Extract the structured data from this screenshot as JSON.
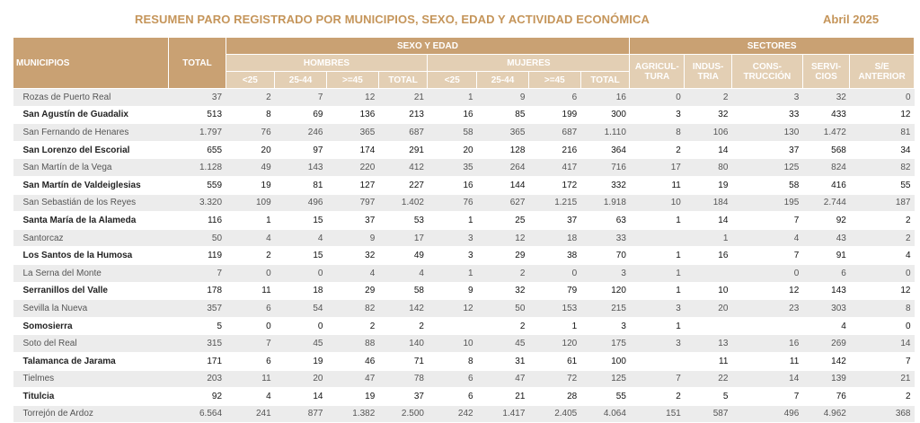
{
  "header": {
    "title": "RESUMEN PARO REGISTRADO POR MUNICIPIOS, SEXO, EDAD Y ACTIVIDAD ECONÓMICA",
    "date": "Abril 2025"
  },
  "table": {
    "col_municipios": "MUNICIPIOS",
    "col_total": "TOTAL",
    "group_sexo_edad": "SEXO Y EDAD",
    "group_sectores": "SECTORES",
    "group_hombres": "HOMBRES",
    "group_mujeres": "MUJERES",
    "age_cols": [
      "<25",
      "25-44",
      ">=45",
      "TOTAL"
    ],
    "sector_cols": [
      "AGRICUL-TURA",
      "INDUS-TRIA",
      "CONS-TRUCCIÓN",
      "SERVI-CIOS",
      "S/E ANTERIOR"
    ],
    "sector_cols_display": [
      [
        "AGRICUL-",
        "TURA"
      ],
      [
        "INDUS-",
        "TRIA"
      ],
      [
        "CONS-",
        "TRUCCIÓN"
      ],
      [
        "SERVI-",
        "CIOS"
      ],
      [
        "S/E ANTERIOR",
        ""
      ]
    ],
    "rows": [
      [
        "Rozas de Puerto Real",
        "37",
        "2",
        "7",
        "12",
        "21",
        "1",
        "9",
        "6",
        "16",
        "0",
        "2",
        "3",
        "32",
        "0"
      ],
      [
        "San Agustín de Guadalix",
        "513",
        "8",
        "69",
        "136",
        "213",
        "16",
        "85",
        "199",
        "300",
        "3",
        "32",
        "33",
        "433",
        "12"
      ],
      [
        "San Fernando de Henares",
        "1.797",
        "76",
        "246",
        "365",
        "687",
        "58",
        "365",
        "687",
        "1.110",
        "8",
        "106",
        "130",
        "1.472",
        "81"
      ],
      [
        "San Lorenzo del Escorial",
        "655",
        "20",
        "97",
        "174",
        "291",
        "20",
        "128",
        "216",
        "364",
        "2",
        "14",
        "37",
        "568",
        "34"
      ],
      [
        "San Martín de la Vega",
        "1.128",
        "49",
        "143",
        "220",
        "412",
        "35",
        "264",
        "417",
        "716",
        "17",
        "80",
        "125",
        "824",
        "82"
      ],
      [
        "San Martín de Valdeiglesias",
        "559",
        "19",
        "81",
        "127",
        "227",
        "16",
        "144",
        "172",
        "332",
        "11",
        "19",
        "58",
        "416",
        "55"
      ],
      [
        "San Sebastián de los Reyes",
        "3.320",
        "109",
        "496",
        "797",
        "1.402",
        "76",
        "627",
        "1.215",
        "1.918",
        "10",
        "184",
        "195",
        "2.744",
        "187"
      ],
      [
        "Santa María de la Alameda",
        "116",
        "1",
        "15",
        "37",
        "53",
        "1",
        "25",
        "37",
        "63",
        "1",
        "14",
        "7",
        "92",
        "2"
      ],
      [
        "Santorcaz",
        "50",
        "4",
        "4",
        "9",
        "17",
        "3",
        "12",
        "18",
        "33",
        "",
        "1",
        "4",
        "43",
        "2"
      ],
      [
        "Los Santos de la Humosa",
        "119",
        "2",
        "15",
        "32",
        "49",
        "3",
        "29",
        "38",
        "70",
        "1",
        "16",
        "7",
        "91",
        "4"
      ],
      [
        "La Serna del Monte",
        "7",
        "0",
        "0",
        "4",
        "4",
        "1",
        "2",
        "0",
        "3",
        "1",
        "",
        "0",
        "6",
        "0"
      ],
      [
        "Serranillos del Valle",
        "178",
        "11",
        "18",
        "29",
        "58",
        "9",
        "32",
        "79",
        "120",
        "1",
        "10",
        "12",
        "143",
        "12"
      ],
      [
        "Sevilla la Nueva",
        "357",
        "6",
        "54",
        "82",
        "142",
        "12",
        "50",
        "153",
        "215",
        "3",
        "20",
        "23",
        "303",
        "8"
      ],
      [
        "Somosierra",
        "5",
        "0",
        "0",
        "2",
        "2",
        "",
        "2",
        "1",
        "3",
        "1",
        "",
        "",
        "4",
        "0"
      ],
      [
        "Soto del Real",
        "315",
        "7",
        "45",
        "88",
        "140",
        "10",
        "45",
        "120",
        "175",
        "3",
        "13",
        "16",
        "269",
        "14"
      ],
      [
        "Talamanca de Jarama",
        "171",
        "6",
        "19",
        "46",
        "71",
        "8",
        "31",
        "61",
        "100",
        "",
        "11",
        "11",
        "142",
        "7"
      ],
      [
        "Tielmes",
        "203",
        "11",
        "20",
        "47",
        "78",
        "6",
        "47",
        "72",
        "125",
        "7",
        "22",
        "14",
        "139",
        "21"
      ],
      [
        "Titulcia",
        "92",
        "4",
        "14",
        "19",
        "37",
        "6",
        "21",
        "28",
        "55",
        "2",
        "5",
        "7",
        "76",
        "2"
      ],
      [
        "Torrejón de Ardoz",
        "6.564",
        "241",
        "877",
        "1.382",
        "2.500",
        "242",
        "1.417",
        "2.405",
        "4.064",
        "151",
        "587",
        "496",
        "4.962",
        "368"
      ]
    ]
  },
  "colors": {
    "header_bg": "#c9a173",
    "subheader_bg": "#e3cfb4",
    "title": "#c5955a",
    "row_alt_bg": "#ececec"
  }
}
